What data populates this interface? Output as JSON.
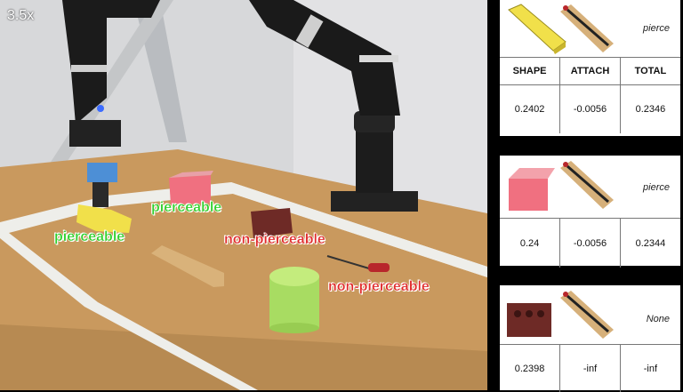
{
  "video": {
    "speed": "3.5x",
    "labels": {
      "yellow_block": "pierceable",
      "pink_cube": "pierceable",
      "brick": "non-pierceable",
      "screwdriver": "non-pierceable"
    }
  },
  "results": [
    {
      "outcome": "pierce",
      "show_header": true,
      "headers": [
        "SHAPE",
        "ATTACH",
        "TOTAL"
      ],
      "shape": "0.2402",
      "attach": "-0.0056",
      "total": "0.2346"
    },
    {
      "outcome": "pierce",
      "show_header": false,
      "shape": "0.24",
      "attach": "-0.0056",
      "total": "0.2344"
    },
    {
      "outcome": "None",
      "show_header": false,
      "shape": "0.2398",
      "attach": "-inf",
      "total": "-inf"
    }
  ],
  "colors": {
    "yellow": "#f1e04a",
    "pink": "#f07080",
    "brick": "#6e2a26",
    "green_cyl": "#a8dc62",
    "label_green": "#2fcf2a",
    "label_red": "#e02a2a"
  }
}
